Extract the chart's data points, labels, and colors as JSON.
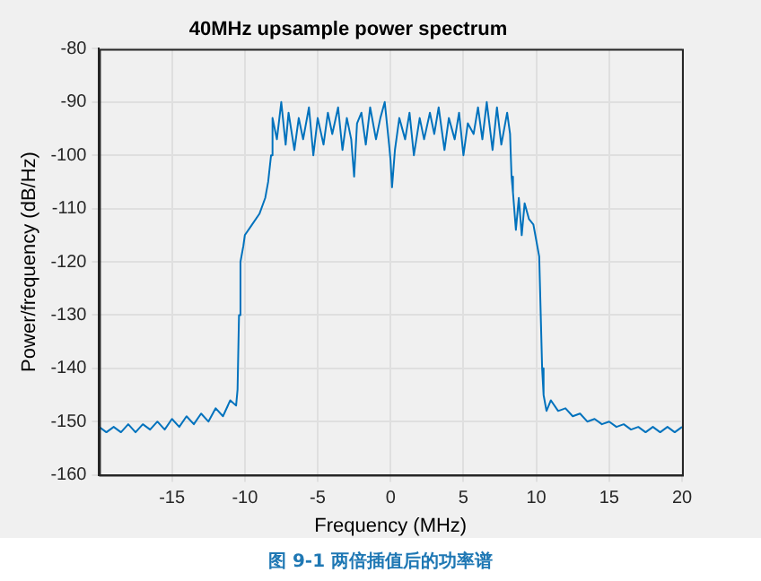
{
  "chart_data": {
    "type": "line",
    "title": "40MHz upsample power spectrum",
    "xlabel": "Frequency (MHz)",
    "ylabel": "Power/frequency (dB/Hz)",
    "annotations": [
      "图 9-1 两倍插值后的功率谱"
    ],
    "xlim": [
      -20,
      20
    ],
    "xticks": [
      -15,
      -10,
      -5,
      0,
      5,
      10,
      15,
      20
    ],
    "ylim": [
      -160,
      -80
    ],
    "yticks": [
      -160,
      -150,
      -140,
      -130,
      -120,
      -110,
      -100,
      -90,
      -80
    ],
    "grid": true,
    "legend": false,
    "marker": "none",
    "line_style": "solid",
    "series": [
      {
        "color": "#0072bd",
        "x": [
          -20,
          -19.5,
          -19,
          -18.5,
          -18,
          -17.5,
          -17,
          -16.5,
          -16,
          -15.5,
          -15,
          -14.5,
          -14,
          -13.5,
          -13,
          -12.5,
          -12,
          -11.5,
          -11,
          -10.6,
          -10.5,
          -10.4,
          -10.3,
          -10.1,
          -10,
          -9.5,
          -9,
          -8.6,
          -8.4,
          -8.2,
          -8.1,
          -7.8,
          -7.5,
          -7.2,
          -7,
          -6.6,
          -6.3,
          -6,
          -5.6,
          -5.3,
          -5,
          -4.6,
          -4.3,
          -4,
          -3.6,
          -3.3,
          -3,
          -2.7,
          -2.5,
          -2.3,
          -2,
          -1.7,
          -1.4,
          -1,
          -0.7,
          -0.4,
          -0.1,
          0,
          0.1,
          0.3,
          0.6,
          1,
          1.3,
          1.6,
          2,
          2.3,
          2.7,
          3,
          3.3,
          3.7,
          4,
          4.4,
          4.7,
          5,
          5.3,
          5.7,
          6,
          6.3,
          6.6,
          7,
          7.3,
          7.6,
          8,
          8.2,
          8.3,
          8.4,
          8.6,
          8.8,
          9,
          9.2,
          9.5,
          9.8,
          10,
          10.2,
          10.4,
          10.5,
          10.7,
          11,
          11.5,
          12,
          12.5,
          13,
          13.5,
          14,
          14.5,
          15,
          15.5,
          16,
          16.5,
          17,
          17.5,
          18,
          18.5,
          19,
          19.5,
          20
        ],
        "values": [
          -151,
          -152,
          -151,
          -152,
          -150.5,
          -152,
          -150.5,
          -151.5,
          -150,
          -151.5,
          -149.5,
          -151,
          -149,
          -150.5,
          -148.5,
          -150,
          -147.5,
          -149,
          -146,
          -147,
          -144,
          -130,
          -120,
          -117,
          -115,
          -113,
          -111,
          -108,
          -105,
          -100,
          -93,
          -97,
          -90,
          -98,
          -92,
          -99,
          -93,
          -97,
          -91,
          -100,
          -93,
          -98,
          -92,
          -96,
          -91,
          -99,
          -93,
          -97,
          -104,
          -94,
          -92,
          -98,
          -91,
          -97,
          -93,
          -90,
          -98,
          -101,
          -106,
          -99,
          -93,
          -97,
          -92,
          -100,
          -93,
          -97,
          -92,
          -96,
          -91,
          -99,
          -93,
          -97,
          -92,
          -100,
          -94,
          -96,
          -91,
          -97,
          -90,
          -99,
          -91,
          -98,
          -92,
          -96,
          -104,
          -107,
          -114,
          -108,
          -115,
          -109,
          -112,
          -113,
          -116,
          -119,
          -140,
          -145,
          -148,
          -146,
          -148,
          -147.5,
          -149,
          -148.5,
          -150,
          -149.5,
          -150.5,
          -150,
          -151,
          -150.5,
          -151.5,
          -151,
          -152,
          -151,
          -152,
          -151,
          -152,
          -151
        ]
      }
    ]
  }
}
